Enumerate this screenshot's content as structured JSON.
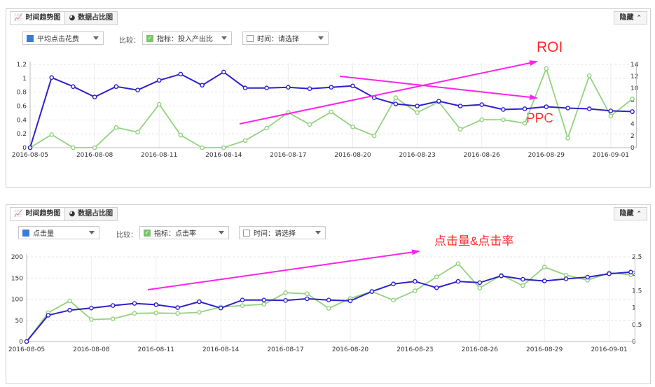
{
  "colors": {
    "primary": "#2f20cc",
    "secondary": "#92d37f",
    "annotation_text": "#ff2a2a",
    "arrow": "#ff22ee"
  },
  "panels": [
    {
      "tabs": [
        {
          "label": "时间趋势图",
          "icon": "line-chart-icon"
        },
        {
          "label": "数据占比图",
          "icon": "pie-chart-icon"
        }
      ],
      "hide_label": "隐藏",
      "metric_select": {
        "value": "平均点击花费"
      },
      "compare_label": "比较：",
      "indicator_select": {
        "value": "指标：投入产出比"
      },
      "time_select": {
        "value": "时间：请选择"
      },
      "annotations": [
        {
          "text": "ROI"
        },
        {
          "text": "PPC"
        }
      ]
    },
    {
      "tabs": [
        {
          "label": "时间趋势图",
          "icon": "line-chart-icon"
        },
        {
          "label": "数据占比图",
          "icon": "pie-chart-icon"
        }
      ],
      "hide_label": "隐藏",
      "metric_select": {
        "value": "点击量"
      },
      "compare_label": "比较：",
      "indicator_select": {
        "value": "指标：点击率"
      },
      "time_select": {
        "value": "时间：请选择"
      },
      "annotations": [
        {
          "text": "点击量&点击率"
        }
      ]
    }
  ],
  "chart_data": [
    {
      "type": "line",
      "x_tick_labels": [
        "2016-08-05",
        "2016-08-08",
        "2016-08-11",
        "2016-08-14",
        "2016-08-17",
        "2016-08-20",
        "2016-08-23",
        "2016-08-26",
        "2016-08-29",
        "2016-09-01"
      ],
      "left_axis": {
        "ylim": [
          0,
          1.2
        ],
        "ticks": [
          "0",
          "0.2",
          "0.4",
          "0.6",
          "0.8",
          "1",
          "1.2"
        ],
        "tick_values": [
          0,
          0.2,
          0.4,
          0.6,
          0.8,
          1,
          1.2
        ]
      },
      "right_axis": {
        "ylim": [
          0,
          14
        ],
        "ticks": [
          "0",
          "2",
          "4",
          "6",
          "8",
          "10",
          "12",
          "14"
        ],
        "tick_values": [
          0,
          2,
          4,
          6,
          8,
          10,
          12,
          14
        ]
      },
      "grid": true,
      "series": [
        {
          "axis": "left",
          "color": "#2f20cc",
          "values": [
            0,
            1.01,
            0.88,
            0.73,
            0.88,
            0.83,
            0.97,
            1.06,
            0.9,
            1.09,
            0.86,
            0.86,
            0.87,
            0.85,
            0.87,
            0.89,
            0.72,
            0.63,
            0.6,
            0.67,
            0.6,
            0.62,
            0.55,
            0.56,
            0.59,
            0.57,
            0.56,
            0.53,
            0.52
          ]
        },
        {
          "axis": "right",
          "color": "#92d37f",
          "values": [
            0,
            2.2,
            0,
            0,
            3.4,
            2.6,
            7.3,
            2.1,
            0,
            0,
            1.2,
            3.3,
            5.9,
            3.9,
            6.0,
            3.5,
            2.0,
            8.4,
            5.9,
            7.7,
            3.1,
            4.7,
            4.7,
            4.1,
            13.3,
            1.6,
            12.1,
            5.3,
            8.2
          ]
        }
      ]
    },
    {
      "type": "line",
      "x_tick_labels": [
        "2016-08-05",
        "2016-08-08",
        "2016-08-11",
        "2016-08-14",
        "2016-08-17",
        "2016-08-20",
        "2016-08-23",
        "2016-08-26",
        "2016-08-29",
        "2016-09-01"
      ],
      "left_axis": {
        "ylim": [
          0,
          200
        ],
        "ticks": [
          "0",
          "50",
          "100",
          "150",
          "200"
        ],
        "tick_values": [
          0,
          50,
          100,
          150,
          200
        ]
      },
      "right_axis": {
        "ylim": [
          0,
          2.5
        ],
        "ticks": [
          "0",
          "0.5",
          "1",
          "1.5",
          "2",
          "2.5"
        ],
        "tick_values": [
          0,
          0.5,
          1,
          1.5,
          2,
          2.5
        ]
      },
      "grid": true,
      "series": [
        {
          "axis": "left",
          "color": "#2f20cc",
          "values": [
            0,
            62,
            74,
            79,
            85,
            90,
            87,
            80,
            94,
            79,
            98,
            98,
            97,
            101,
            98,
            96,
            118,
            136,
            142,
            127,
            142,
            139,
            155,
            147,
            143,
            148,
            152,
            160,
            164
          ]
        },
        {
          "axis": "right",
          "color": "#92d37f",
          "values": [
            0,
            0.85,
            1.2,
            0.65,
            0.67,
            0.83,
            0.84,
            0.83,
            0.86,
            1.02,
            1.06,
            1.1,
            1.44,
            1.41,
            0.98,
            1.27,
            1.48,
            1.22,
            1.5,
            1.91,
            2.3,
            1.58,
            1.96,
            1.65,
            2.2,
            1.96,
            1.81,
            2.03,
            1.97
          ]
        }
      ]
    }
  ]
}
